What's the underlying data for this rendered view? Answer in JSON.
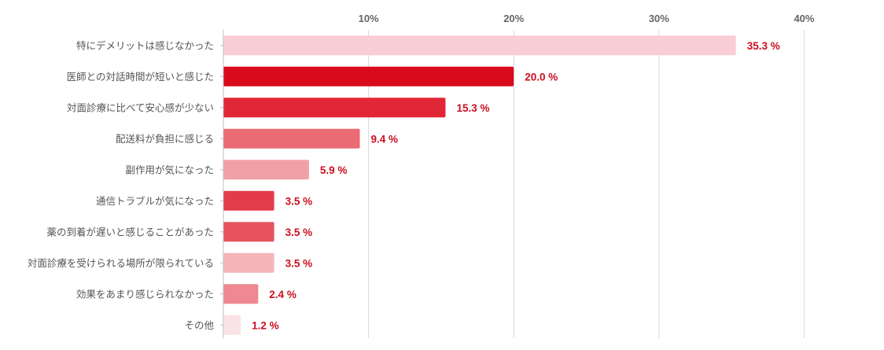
{
  "chart_data": {
    "type": "bar",
    "orientation": "horizontal",
    "categories": [
      "特にデメリットは感じなかった",
      "医師との対話時間が短いと感じた",
      "対面診療に比べて安心感が少ない",
      "配送料が負担に感じる",
      "副作用が気になった",
      "通信トラブルが気になった",
      "薬の到着が遅いと感じることがあった",
      "対面診療を受けられる場所が限られている",
      "効果をあまり感じられなかった",
      "その他"
    ],
    "values": [
      35.3,
      20.0,
      15.3,
      9.4,
      5.9,
      3.5,
      3.5,
      3.5,
      2.4,
      1.2
    ],
    "value_labels": [
      "35.3 %",
      "20.0 %",
      "15.3 %",
      "9.4 %",
      "5.9 %",
      "3.5 %",
      "3.5 %",
      "3.5 %",
      "2.4 %",
      "1.2 %"
    ],
    "bar_colors": [
      "#f8ced4",
      "#d90a1c",
      "#e12737",
      "#ea6b74",
      "#f2a0a7",
      "#e33b4a",
      "#e6535e",
      "#f4b5ba",
      "#ef8890",
      "#fae3e6"
    ],
    "value_label_color": "#c9101f",
    "x_ticks": [
      {
        "value": 10,
        "label": "10%"
      },
      {
        "value": 20,
        "label": "20%"
      },
      {
        "value": 30,
        "label": "30%"
      },
      {
        "value": 40,
        "label": "40%"
      }
    ],
    "xlim": [
      0,
      45.5
    ],
    "grid": true,
    "title": "",
    "xlabel": "",
    "ylabel": ""
  }
}
